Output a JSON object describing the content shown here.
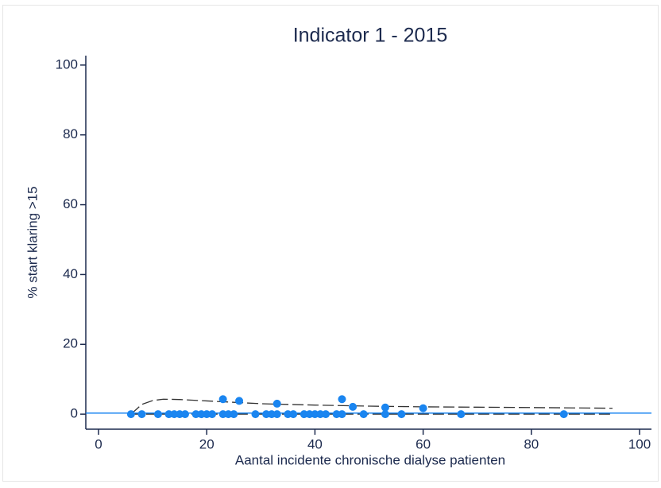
{
  "chart_data": {
    "type": "scatter",
    "title": "Indicator 1 - 2015",
    "x_label": "Aantal incidente chronische dialyse patienten",
    "y_label": "% start klaring >15",
    "xlim": [
      -2.35,
      102.2
    ],
    "ylim": [
      -4.3,
      102.7
    ],
    "xticks": [
      0,
      20,
      40,
      60,
      80,
      100
    ],
    "yticks": [
      0,
      20,
      40,
      60,
      80,
      100
    ],
    "points": {
      "color": "#1a85f0",
      "x": [
        6,
        8,
        11,
        13,
        14,
        15,
        16,
        18,
        19,
        20,
        21,
        23,
        24,
        25,
        29,
        31,
        32,
        33,
        35,
        36,
        38,
        39,
        40,
        41,
        42,
        44,
        45,
        49,
        53,
        56,
        67,
        86,
        23,
        26,
        33,
        45,
        47,
        53,
        60
      ],
      "y": [
        0,
        0,
        0,
        0,
        0,
        0,
        0,
        0,
        0,
        0,
        0,
        0,
        0,
        0,
        0,
        0,
        0,
        0,
        0,
        0,
        0,
        0,
        0,
        0,
        0,
        0,
        0,
        0,
        0,
        0,
        0,
        0,
        4.3,
        3.8,
        3.0,
        4.3,
        2.1,
        1.9,
        1.7
      ]
    },
    "upper_limit": {
      "color": "#333333",
      "x": [
        6,
        8,
        10,
        12,
        15,
        20,
        25,
        30,
        40,
        50,
        60,
        70,
        80,
        95
      ],
      "y": [
        0,
        2.8,
        3.9,
        4.3,
        4.2,
        3.8,
        3.4,
        3.0,
        2.6,
        2.3,
        2.1,
        2.0,
        1.9,
        1.7
      ]
    },
    "lower_limit": {
      "color": "#333333",
      "x": [
        6,
        95
      ],
      "y": [
        0,
        0
      ]
    },
    "reference_line": {
      "value": 0.3,
      "color": "#1a85f0"
    }
  }
}
